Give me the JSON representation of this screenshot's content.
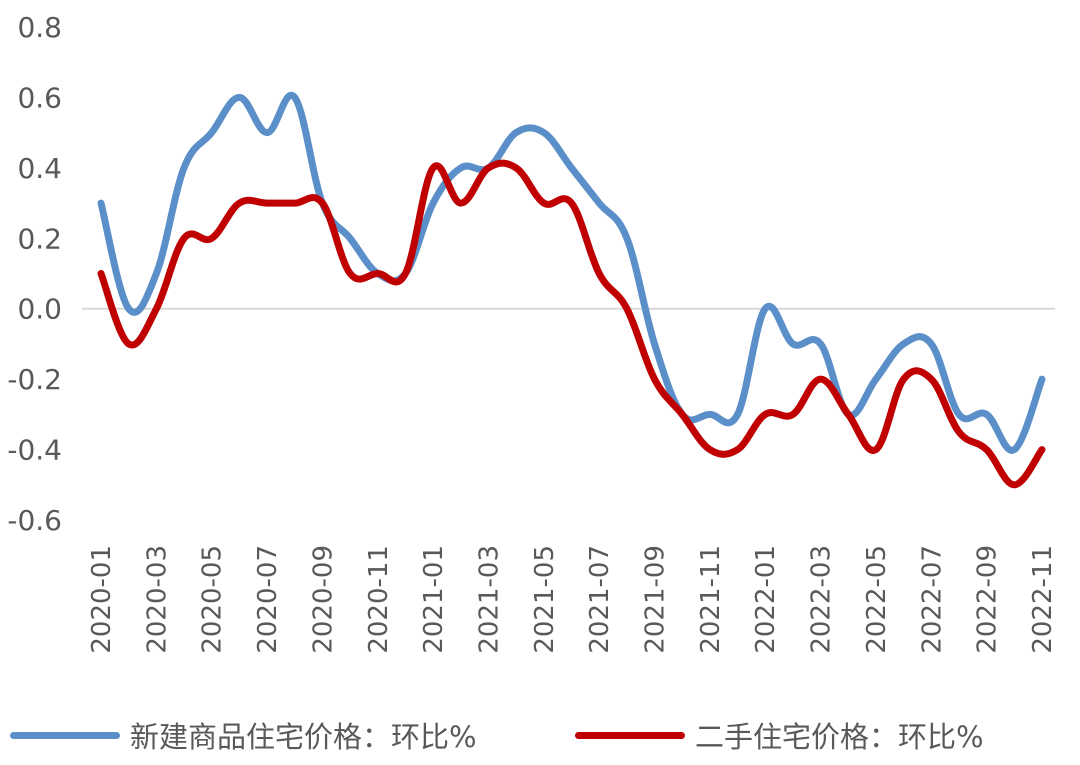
{
  "chart_data": {
    "type": "line",
    "title": "",
    "xlabel": "",
    "ylabel": "",
    "ylim": [
      -0.6,
      0.8
    ],
    "yticks": [
      "0.8",
      "0.6",
      "0.4",
      "0.2",
      "0.0",
      "-0.2",
      "-0.4",
      "-0.6"
    ],
    "grid": false,
    "zero_line": true,
    "legend_position": "bottom",
    "x": [
      "2020-01",
      "2020-02",
      "2020-03",
      "2020-04",
      "2020-05",
      "2020-06",
      "2020-07",
      "2020-08",
      "2020-09",
      "2020-10",
      "2020-11",
      "2020-12",
      "2021-01",
      "2021-02",
      "2021-03",
      "2021-04",
      "2021-05",
      "2021-06",
      "2021-07",
      "2021-08",
      "2021-09",
      "2021-10",
      "2021-11",
      "2021-12",
      "2022-01",
      "2022-02",
      "2022-03",
      "2022-04",
      "2022-05",
      "2022-06",
      "2022-07",
      "2022-08",
      "2022-09",
      "2022-10",
      "2022-11"
    ],
    "xtick_labels": [
      "2020-01",
      "2020-03",
      "2020-05",
      "2020-07",
      "2020-09",
      "2020-11",
      "2021-01",
      "2021-03",
      "2021-05",
      "2021-07",
      "2021-09",
      "2021-11",
      "2022-01",
      "2022-03",
      "2022-05",
      "2022-07",
      "2022-09",
      "2022-11"
    ],
    "series": [
      {
        "name": "新建商品住宅价格：环比%",
        "color": "#5B8FC9",
        "values": [
          0.3,
          0.0,
          0.1,
          0.4,
          0.5,
          0.6,
          0.5,
          0.6,
          0.3,
          0.2,
          0.1,
          0.1,
          0.3,
          0.4,
          0.4,
          0.5,
          0.5,
          0.4,
          0.3,
          0.2,
          -0.1,
          -0.3,
          -0.3,
          -0.3,
          0.0,
          -0.1,
          -0.1,
          -0.3,
          -0.2,
          -0.1,
          -0.1,
          -0.3,
          -0.3,
          -0.4,
          -0.2
        ]
      },
      {
        "name": "二手住宅价格：环比%",
        "color": "#C00000",
        "values": [
          0.1,
          -0.1,
          0.0,
          0.2,
          0.2,
          0.3,
          0.3,
          0.3,
          0.3,
          0.1,
          0.1,
          0.1,
          0.4,
          0.3,
          0.4,
          0.4,
          0.3,
          0.3,
          0.1,
          0.0,
          -0.2,
          -0.3,
          -0.4,
          -0.4,
          -0.3,
          -0.3,
          -0.2,
          -0.3,
          -0.4,
          -0.2,
          -0.2,
          -0.35,
          -0.4,
          -0.5,
          -0.4
        ]
      }
    ]
  },
  "legend": {
    "items": [
      {
        "label": "新建商品住宅价格：环比%",
        "color": "#5B8FC9"
      },
      {
        "label": "二手住宅价格：环比%",
        "color": "#C00000"
      }
    ]
  }
}
